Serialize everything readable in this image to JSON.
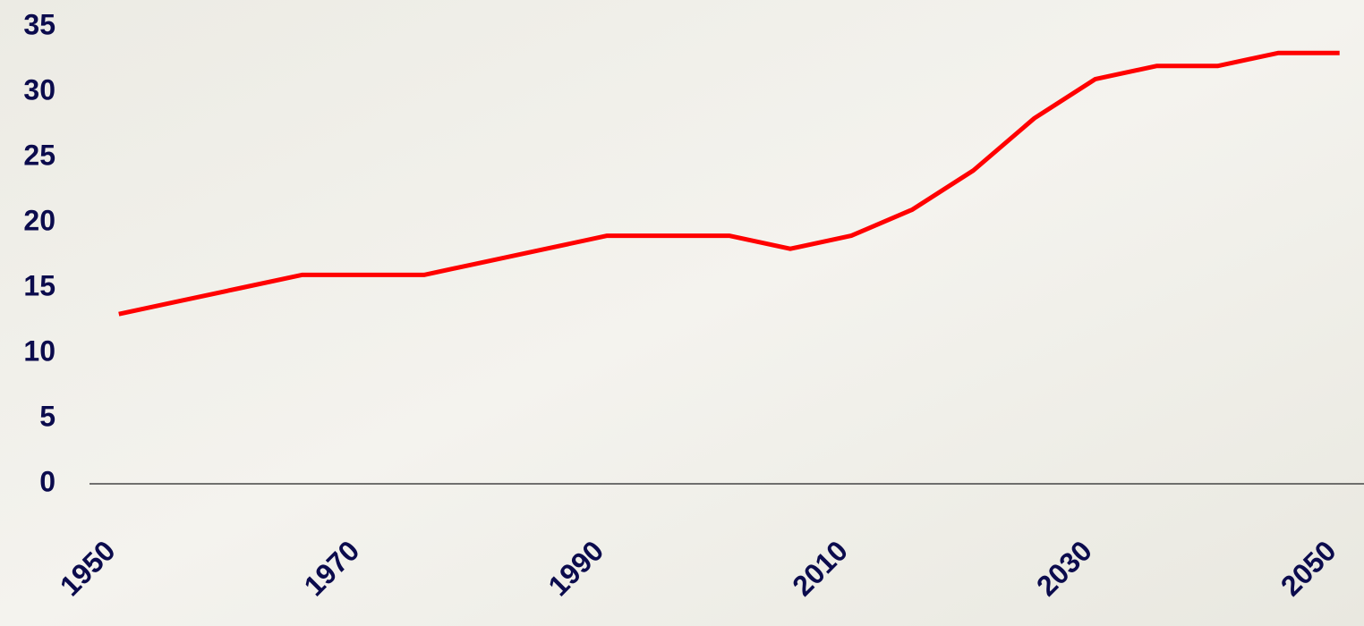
{
  "chart_data": {
    "type": "line",
    "x": [
      1950,
      1955,
      1960,
      1965,
      1970,
      1975,
      1980,
      1985,
      1990,
      1995,
      2000,
      2005,
      2010,
      2015,
      2020,
      2025,
      2030,
      2035,
      2040,
      2045,
      2050
    ],
    "series": [
      {
        "color": "#ff0000",
        "values": [
          13,
          14,
          15,
          16,
          16,
          16,
          17,
          18,
          19,
          19,
          19,
          18,
          19,
          21,
          24,
          28,
          31,
          32,
          32,
          33,
          33
        ]
      }
    ],
    "xlim": [
      1947.6,
      2052
    ],
    "xticks": [
      1950,
      1970,
      1990,
      2010,
      2030,
      2050
    ],
    "ylim": [
      0,
      35
    ],
    "yticks": [
      0,
      5,
      10,
      15,
      20,
      25,
      30,
      35
    ],
    "grid": false
  }
}
